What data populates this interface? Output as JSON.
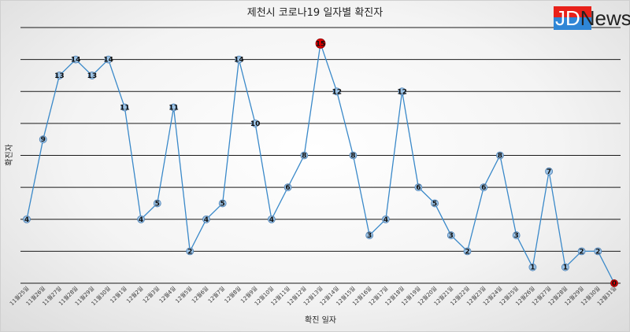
{
  "logo": {
    "brand": "JD",
    "suffix": "News"
  },
  "chart_data": {
    "type": "line",
    "title": "제천시 코로나19 일자별 확진자",
    "xlabel": "확진 일자",
    "ylabel": "확진자",
    "ylim": [
      0,
      16
    ],
    "grid": true,
    "x": [
      "11월25일",
      "11월26일",
      "11월27일",
      "11월28일",
      "11월29일",
      "11월30일",
      "12월1일",
      "12월2일",
      "12월3일",
      "12월4일",
      "12월5일",
      "12월6일",
      "12월7일",
      "12월8일",
      "12월9일",
      "12월10일",
      "12월11일",
      "12월12일",
      "12월13일",
      "12월14일",
      "12월15일",
      "12월16일",
      "12월17일",
      "12월18일",
      "12월19일",
      "12월20일",
      "12월21일",
      "12월22일",
      "12월23일",
      "12월24일",
      "12월25일",
      "12월26일",
      "12월27일",
      "12월28일",
      "12월29일",
      "12월30일",
      "12월31일"
    ],
    "series": [
      {
        "values": [
          4,
          9,
          13,
          14,
          13,
          14,
          11,
          4,
          5,
          11,
          2,
          4,
          5,
          14,
          10,
          4,
          6,
          8,
          15,
          12,
          8,
          3,
          4,
          12,
          6,
          5,
          3,
          2,
          6,
          8,
          3,
          1,
          7,
          1,
          2,
          2,
          0
        ]
      }
    ],
    "highlights": [
      {
        "date": "12월13일",
        "value": 15,
        "color": "#e00000"
      },
      {
        "date": "12월31일",
        "value": 0,
        "color": "#e00000"
      }
    ],
    "line_color": "#3a89c9",
    "marker_color": "#9cc3e6"
  }
}
